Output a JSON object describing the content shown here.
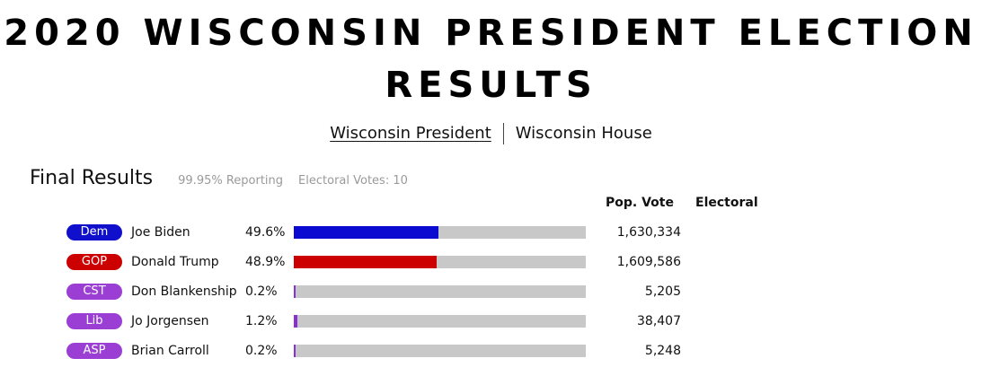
{
  "page": {
    "title": "2020 WISCONSIN PRESIDENT ELECTION RESULTS"
  },
  "nav": {
    "links": [
      {
        "label": "Wisconsin President",
        "active": true
      },
      {
        "label": "Wisconsin House",
        "active": false
      }
    ]
  },
  "results": {
    "title": "Final Results",
    "reporting": "99.95% Reporting",
    "electoral_votes": "Electoral Votes: 10",
    "columns": {
      "pop_vote": "Pop. Vote",
      "electoral": "Electoral"
    },
    "candidates": [
      {
        "party": "Dem",
        "party_color": "#1010cc",
        "bar_color": "#0a0ad0",
        "name": "Joe Biden",
        "pct_label": "49.6%",
        "pct": 49.6,
        "pop_vote": "1,630,334"
      },
      {
        "party": "GOP",
        "party_color": "#cc0000",
        "bar_color": "#cc0000",
        "name": "Donald Trump",
        "pct_label": "48.9%",
        "pct": 48.9,
        "pop_vote": "1,609,586"
      },
      {
        "party": "CST",
        "party_color": "#9b3fd4",
        "bar_color": "#8a2fd0",
        "name": "Don Blankenship",
        "pct_label": "0.2%",
        "pct": 0.2,
        "pop_vote": "5,205"
      },
      {
        "party": "Lib",
        "party_color": "#9b3fd4",
        "bar_color": "#8a2fd0",
        "name": "Jo Jorgensen",
        "pct_label": "1.2%",
        "pct": 1.2,
        "pop_vote": "38,407"
      },
      {
        "party": "ASP",
        "party_color": "#9b3fd4",
        "bar_color": "#8a2fd0",
        "name": "Brian Carroll",
        "pct_label": "0.2%",
        "pct": 0.2,
        "pop_vote": "5,248"
      }
    ]
  }
}
